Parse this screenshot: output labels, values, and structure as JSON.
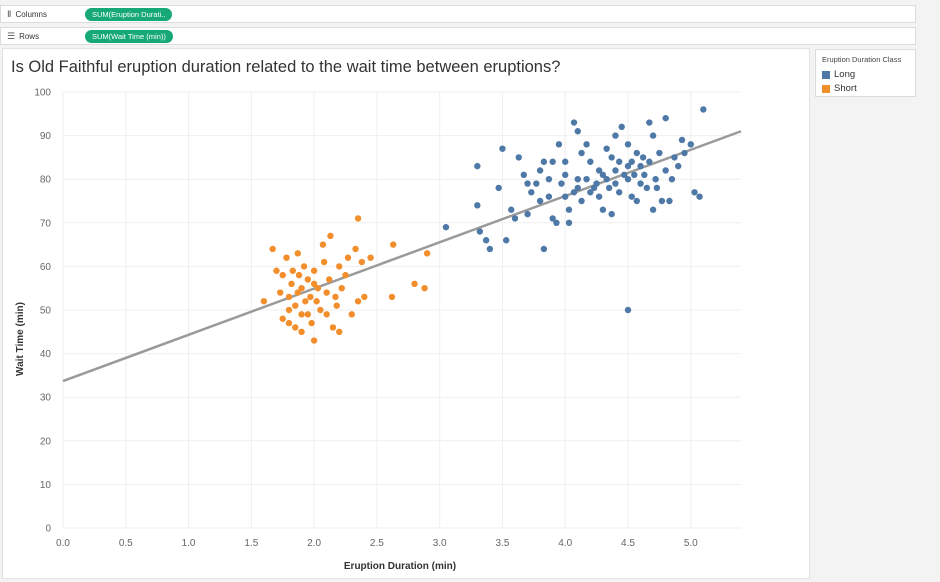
{
  "shelves": {
    "columns": {
      "label": "Columns",
      "pill": "SUM(Eruption Durati.."
    },
    "rows": {
      "label": "Rows",
      "pill": "SUM(Wait Time (min))"
    }
  },
  "legend": {
    "title": "Eruption Duration Class",
    "items": [
      {
        "label": "Long",
        "color": "#4e79a7"
      },
      {
        "label": "Short",
        "color": "#f28e2b"
      }
    ]
  },
  "chart_data": {
    "type": "scatter",
    "title": "Is Old Faithful eruption duration related to the wait time between eruptions?",
    "xlabel": "Eruption Duration (min)",
    "ylabel": "Wait Time (min)",
    "xlim": [
      0,
      5.4
    ],
    "ylim": [
      0,
      100
    ],
    "xticks": [
      "0.0",
      "0.5",
      "1.0",
      "1.5",
      "2.0",
      "2.5",
      "3.0",
      "3.5",
      "4.0",
      "4.5",
      "5.0"
    ],
    "yticks": [
      "0",
      "10",
      "20",
      "30",
      "40",
      "50",
      "60",
      "70",
      "80",
      "90",
      "100"
    ],
    "grid": true,
    "legend_position": "right",
    "trend_line": {
      "x": [
        0,
        5.4
      ],
      "y": [
        33.7,
        91.0
      ],
      "color": "#9a9a9a"
    },
    "series": [
      {
        "name": "Long",
        "color": "#4e79a7",
        "points": [
          [
            3.05,
            69
          ],
          [
            3.3,
            83
          ],
          [
            3.3,
            74
          ],
          [
            3.32,
            68
          ],
          [
            3.37,
            66
          ],
          [
            3.4,
            64
          ],
          [
            3.47,
            78
          ],
          [
            3.5,
            87
          ],
          [
            3.53,
            66
          ],
          [
            3.57,
            73
          ],
          [
            3.6,
            71
          ],
          [
            3.63,
            85
          ],
          [
            3.67,
            81
          ],
          [
            3.7,
            79
          ],
          [
            3.7,
            72
          ],
          [
            3.73,
            77
          ],
          [
            3.77,
            79
          ],
          [
            3.8,
            82
          ],
          [
            3.8,
            75
          ],
          [
            3.83,
            84
          ],
          [
            3.83,
            64
          ],
          [
            3.87,
            80
          ],
          [
            3.87,
            76
          ],
          [
            3.9,
            84
          ],
          [
            3.9,
            71
          ],
          [
            3.93,
            70
          ],
          [
            3.95,
            88
          ],
          [
            3.97,
            79
          ],
          [
            4.0,
            81
          ],
          [
            4.0,
            76
          ],
          [
            4.0,
            84
          ],
          [
            4.03,
            73
          ],
          [
            4.03,
            70
          ],
          [
            4.07,
            93
          ],
          [
            4.07,
            77
          ],
          [
            4.1,
            80
          ],
          [
            4.1,
            91
          ],
          [
            4.1,
            78
          ],
          [
            4.13,
            86
          ],
          [
            4.13,
            75
          ],
          [
            4.17,
            80
          ],
          [
            4.17,
            88
          ],
          [
            4.2,
            84
          ],
          [
            4.2,
            77
          ],
          [
            4.23,
            78
          ],
          [
            4.25,
            79
          ],
          [
            4.27,
            82
          ],
          [
            4.27,
            76
          ],
          [
            4.3,
            81
          ],
          [
            4.3,
            73
          ],
          [
            4.33,
            80
          ],
          [
            4.33,
            87
          ],
          [
            4.35,
            78
          ],
          [
            4.37,
            85
          ],
          [
            4.37,
            72
          ],
          [
            4.4,
            82
          ],
          [
            4.4,
            90
          ],
          [
            4.4,
            79
          ],
          [
            4.43,
            84
          ],
          [
            4.43,
            77
          ],
          [
            4.45,
            92
          ],
          [
            4.47,
            81
          ],
          [
            4.5,
            83
          ],
          [
            4.5,
            80
          ],
          [
            4.5,
            88
          ],
          [
            4.53,
            76
          ],
          [
            4.53,
            84
          ],
          [
            4.55,
            81
          ],
          [
            4.57,
            75
          ],
          [
            4.57,
            86
          ],
          [
            4.6,
            79
          ],
          [
            4.6,
            83
          ],
          [
            4.62,
            85
          ],
          [
            4.63,
            81
          ],
          [
            4.65,
            78
          ],
          [
            4.67,
            93
          ],
          [
            4.67,
            84
          ],
          [
            4.7,
            73
          ],
          [
            4.7,
            90
          ],
          [
            4.72,
            80
          ],
          [
            4.73,
            78
          ],
          [
            4.75,
            86
          ],
          [
            4.77,
            75
          ],
          [
            4.8,
            94
          ],
          [
            4.8,
            82
          ],
          [
            4.83,
            75
          ],
          [
            4.85,
            80
          ],
          [
            4.87,
            85
          ],
          [
            4.9,
            83
          ],
          [
            4.93,
            89
          ],
          [
            4.95,
            86
          ],
          [
            5.0,
            88
          ],
          [
            5.03,
            77
          ],
          [
            5.07,
            76
          ],
          [
            5.1,
            96
          ],
          [
            4.5,
            50
          ]
        ]
      },
      {
        "name": "Short",
        "color": "#f28e2b",
        "points": [
          [
            1.6,
            52
          ],
          [
            1.67,
            64
          ],
          [
            1.7,
            59
          ],
          [
            1.73,
            54
          ],
          [
            1.75,
            58
          ],
          [
            1.75,
            48
          ],
          [
            1.78,
            62
          ],
          [
            1.8,
            47
          ],
          [
            1.8,
            50
          ],
          [
            1.8,
            53
          ],
          [
            1.82,
            56
          ],
          [
            1.83,
            59
          ],
          [
            1.85,
            46
          ],
          [
            1.85,
            51
          ],
          [
            1.87,
            63
          ],
          [
            1.87,
            54
          ],
          [
            1.88,
            58
          ],
          [
            1.9,
            45
          ],
          [
            1.9,
            49
          ],
          [
            1.9,
            55
          ],
          [
            1.92,
            60
          ],
          [
            1.93,
            52
          ],
          [
            1.95,
            57
          ],
          [
            1.95,
            49
          ],
          [
            1.97,
            53
          ],
          [
            1.98,
            47
          ],
          [
            2.0,
            56
          ],
          [
            2.0,
            43
          ],
          [
            2.0,
            59
          ],
          [
            2.02,
            52
          ],
          [
            2.03,
            55
          ],
          [
            2.05,
            50
          ],
          [
            2.07,
            65
          ],
          [
            2.08,
            61
          ],
          [
            2.1,
            54
          ],
          [
            2.1,
            49
          ],
          [
            2.12,
            57
          ],
          [
            2.13,
            67
          ],
          [
            2.15,
            46
          ],
          [
            2.17,
            53
          ],
          [
            2.18,
            51
          ],
          [
            2.2,
            60
          ],
          [
            2.2,
            45
          ],
          [
            2.22,
            55
          ],
          [
            2.25,
            58
          ],
          [
            2.27,
            62
          ],
          [
            2.3,
            49
          ],
          [
            2.33,
            64
          ],
          [
            2.35,
            71
          ],
          [
            2.35,
            52
          ],
          [
            2.38,
            61
          ],
          [
            2.4,
            53
          ],
          [
            2.45,
            62
          ],
          [
            2.62,
            53
          ],
          [
            2.63,
            65
          ],
          [
            2.8,
            56
          ],
          [
            2.88,
            55
          ],
          [
            2.9,
            63
          ]
        ]
      }
    ]
  }
}
